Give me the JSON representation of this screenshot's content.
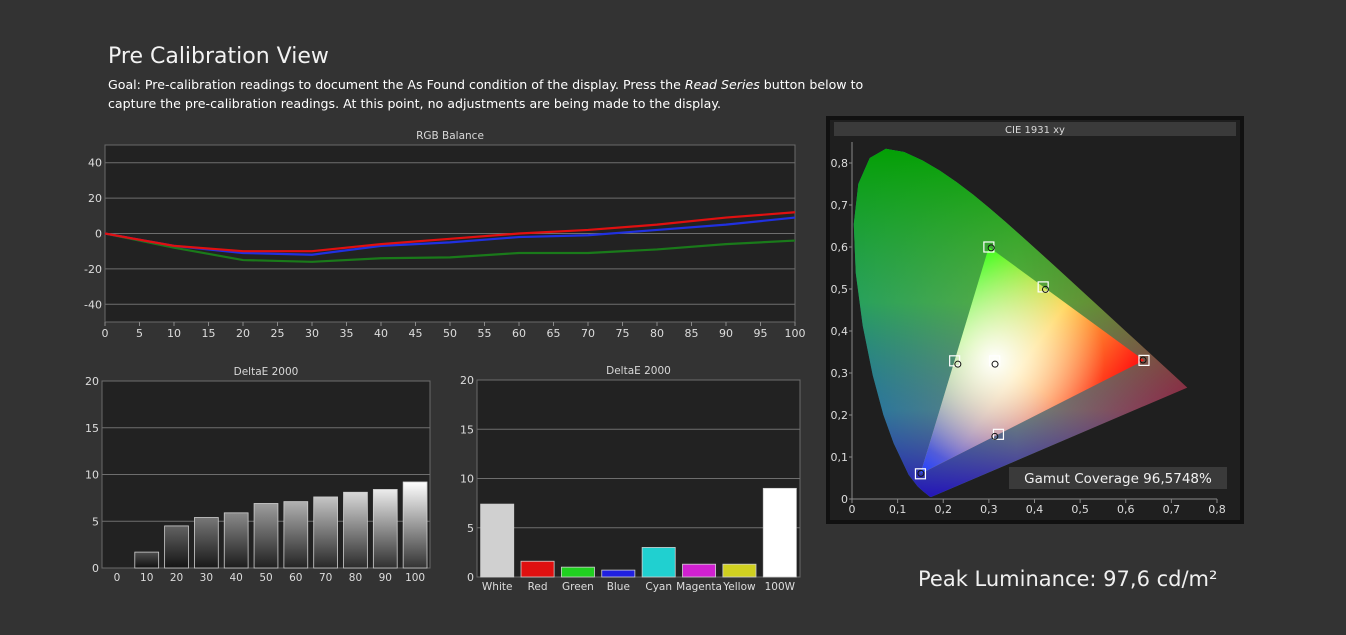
{
  "header": {
    "title": "Pre Calibration View",
    "goal_prefix": "Goal: Pre-calibration readings to document the As Found condition of the display. Press the ",
    "goal_emphasis": "Read Series",
    "goal_suffix": " button below to capture the pre-calibration readings. At this point, no adjustments are being made to the display."
  },
  "peak_luminance": "Peak Luminance: 97,6 cd/m²",
  "gamut_coverage": "Gamut Coverage 96,5748%",
  "chart_data": [
    {
      "type": "line",
      "title": "RGB Balance",
      "xlabel": "",
      "ylabel": "",
      "x": [
        0,
        5,
        10,
        15,
        20,
        25,
        30,
        35,
        40,
        45,
        50,
        55,
        60,
        65,
        70,
        75,
        80,
        85,
        90,
        95,
        100
      ],
      "xlim": [
        0,
        100
      ],
      "ylim": [
        -50,
        50
      ],
      "yticks": [
        40,
        20,
        0,
        -20,
        -40
      ],
      "xticks": [
        0,
        5,
        10,
        15,
        20,
        25,
        30,
        35,
        40,
        45,
        50,
        55,
        60,
        65,
        70,
        75,
        80,
        85,
        90,
        95,
        100
      ],
      "grid": true,
      "series": [
        {
          "color": "#1a7a1a",
          "x": [
            0,
            10,
            20,
            30,
            40,
            50,
            60,
            70,
            80,
            90,
            100
          ],
          "values": [
            0,
            -8,
            -15,
            -16,
            -14,
            -13.5,
            -11,
            -11,
            -9,
            -6,
            -4
          ]
        },
        {
          "color": "#2030e0",
          "x": [
            0,
            10,
            20,
            30,
            40,
            50,
            60,
            70,
            80,
            90,
            100
          ],
          "values": [
            0,
            -7,
            -11,
            -12,
            -7,
            -5,
            -2,
            -1,
            2,
            5,
            9
          ]
        },
        {
          "color": "#e01010",
          "x": [
            0,
            10,
            20,
            30,
            40,
            50,
            60,
            70,
            80,
            90,
            100
          ],
          "values": [
            0,
            -7,
            -10,
            -10,
            -6,
            -3,
            0,
            2,
            5,
            9,
            12
          ]
        }
      ]
    },
    {
      "type": "bar",
      "title": "DeltaE 2000",
      "categories": [
        "0",
        "10",
        "20",
        "30",
        "40",
        "50",
        "60",
        "70",
        "80",
        "90",
        "100"
      ],
      "values": [
        0,
        1.7,
        4.5,
        5.4,
        5.9,
        6.9,
        7.1,
        7.6,
        8.1,
        8.4,
        9.2
      ],
      "ylim": [
        0,
        20
      ],
      "yticks": [
        20,
        15,
        10,
        5,
        0
      ],
      "grid": true
    },
    {
      "type": "bar",
      "title": "DeltaE 2000",
      "categories": [
        "White",
        "Red",
        "Green",
        "Blue",
        "Cyan",
        "Magenta",
        "Yellow",
        "100W"
      ],
      "values": [
        7.4,
        1.6,
        1.0,
        0.7,
        3.0,
        1.3,
        1.3,
        9.0
      ],
      "colors": [
        "#d0d0d0",
        "#e01010",
        "#20d020",
        "#2020e0",
        "#20d0d0",
        "#d020d0",
        "#d0d020",
        "#ffffff"
      ],
      "ylim": [
        0,
        20
      ],
      "yticks": [
        20,
        15,
        10,
        5,
        0
      ],
      "grid": true
    },
    {
      "type": "scatter",
      "title": "CIE 1931 xy",
      "xlim": [
        0,
        0.8
      ],
      "ylim": [
        0,
        0.85
      ],
      "xticks": [
        "0",
        "0,1",
        "0,2",
        "0,3",
        "0,4",
        "0,5",
        "0,6",
        "0,7",
        "0,8"
      ],
      "yticks": [
        "0",
        "0,1",
        "0,2",
        "0,3",
        "0,4",
        "0,5",
        "0,6",
        "0,7",
        "0,8"
      ],
      "targets": [
        {
          "name": "Red",
          "x": 0.64,
          "y": 0.33
        },
        {
          "name": "Green",
          "x": 0.3,
          "y": 0.6
        },
        {
          "name": "Blue",
          "x": 0.15,
          "y": 0.06
        },
        {
          "name": "Cyan",
          "x": 0.225,
          "y": 0.329
        },
        {
          "name": "Magenta",
          "x": 0.321,
          "y": 0.154
        },
        {
          "name": "Yellow",
          "x": 0.419,
          "y": 0.505
        },
        {
          "name": "White",
          "x": 0.3127,
          "y": 0.329
        }
      ],
      "measured": [
        {
          "name": "Red",
          "x": 0.638,
          "y": 0.331
        },
        {
          "name": "Green",
          "x": 0.305,
          "y": 0.598
        },
        {
          "name": "Blue",
          "x": 0.151,
          "y": 0.061
        },
        {
          "name": "Cyan",
          "x": 0.232,
          "y": 0.321
        },
        {
          "name": "Magenta",
          "x": 0.313,
          "y": 0.149
        },
        {
          "name": "Yellow",
          "x": 0.424,
          "y": 0.499
        },
        {
          "name": "White",
          "x": 0.3135,
          "y": 0.321
        }
      ]
    }
  ]
}
